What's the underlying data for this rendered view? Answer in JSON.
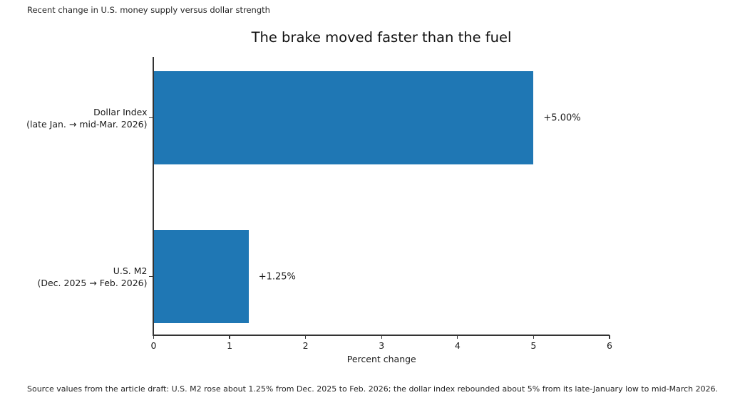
{
  "note_top": "Recent change in U.S. money supply versus dollar strength",
  "note_bottom": "Source values from the article draft: U.S. M2 rose about 1.25% from Dec. 2025 to Feb. 2026; the dollar index rebounded about 5% from its late-January low to mid-March 2026.",
  "chart_data": {
    "type": "bar",
    "orientation": "horizontal",
    "title": "The brake moved faster than the fuel",
    "categories": [
      [
        "Dollar Index",
        "(late Jan. → mid-Mar. 2026)"
      ],
      [
        "U.S. M2",
        "(Dec. 2025 → Feb. 2026)"
      ]
    ],
    "values": [
      5.0,
      1.25
    ],
    "value_labels": [
      "+5.00%",
      "+1.25%"
    ],
    "xlabel": "Percent change",
    "ylabel": "",
    "xticks": [
      0,
      1,
      2,
      3,
      4,
      5,
      6
    ],
    "xlim": [
      0,
      6
    ],
    "bar_color": "#1f77b4",
    "grid": false,
    "legend": null
  }
}
